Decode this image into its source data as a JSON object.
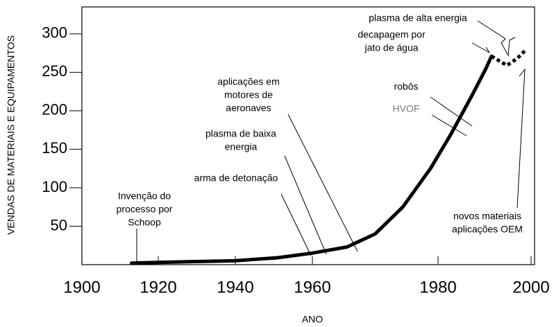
{
  "chart_data": {
    "type": "line",
    "x_label": "ANO",
    "y_label": "VENDAS DE MATERIAIS E EQUIPAMENTOS",
    "xlim": [
      1900,
      2000
    ],
    "xticks": [
      1900,
      1920,
      1940,
      1960,
      1980,
      2000
    ],
    "ylim": [
      0,
      335
    ],
    "yticks": [
      50,
      100,
      150,
      200,
      250,
      300
    ],
    "series": [
      {
        "color": "#000000",
        "dashed": false,
        "x": [
          1913,
          1920,
          1940,
          1951,
          1960,
          1965.5,
          1970,
          1974.4,
          1978.8,
          1982.8,
          1987.3,
          1990.3,
          1991.5
        ],
        "values": [
          2,
          3,
          5,
          9,
          15,
          23,
          40,
          75,
          125,
          170,
          220,
          255,
          271
        ]
      },
      {
        "color": "#000000",
        "dashed": true,
        "x": [
          1991.5,
          1994.8,
          1997,
          1999
        ],
        "values": [
          271,
          259,
          268,
          280
        ]
      }
    ],
    "annotations": [
      {
        "lines": [
          "Invenção do",
          "processo por",
          "Schoop"
        ]
      },
      {
        "lines": [
          "arma de detonação"
        ]
      },
      {
        "lines": [
          "plasma de baixa",
          "energia"
        ]
      },
      {
        "lines": [
          "aplicações em",
          "motores de",
          "aeronaves"
        ]
      },
      {
        "lines": [
          "robôs"
        ]
      },
      {
        "lines": [
          "HVOF"
        ]
      },
      {
        "lines": [
          "plasma de alta energia"
        ]
      },
      {
        "lines": [
          "decapagem por",
          "jato de água"
        ]
      },
      {
        "lines": [
          "novos materiais",
          "aplicações OEM"
        ]
      }
    ]
  }
}
